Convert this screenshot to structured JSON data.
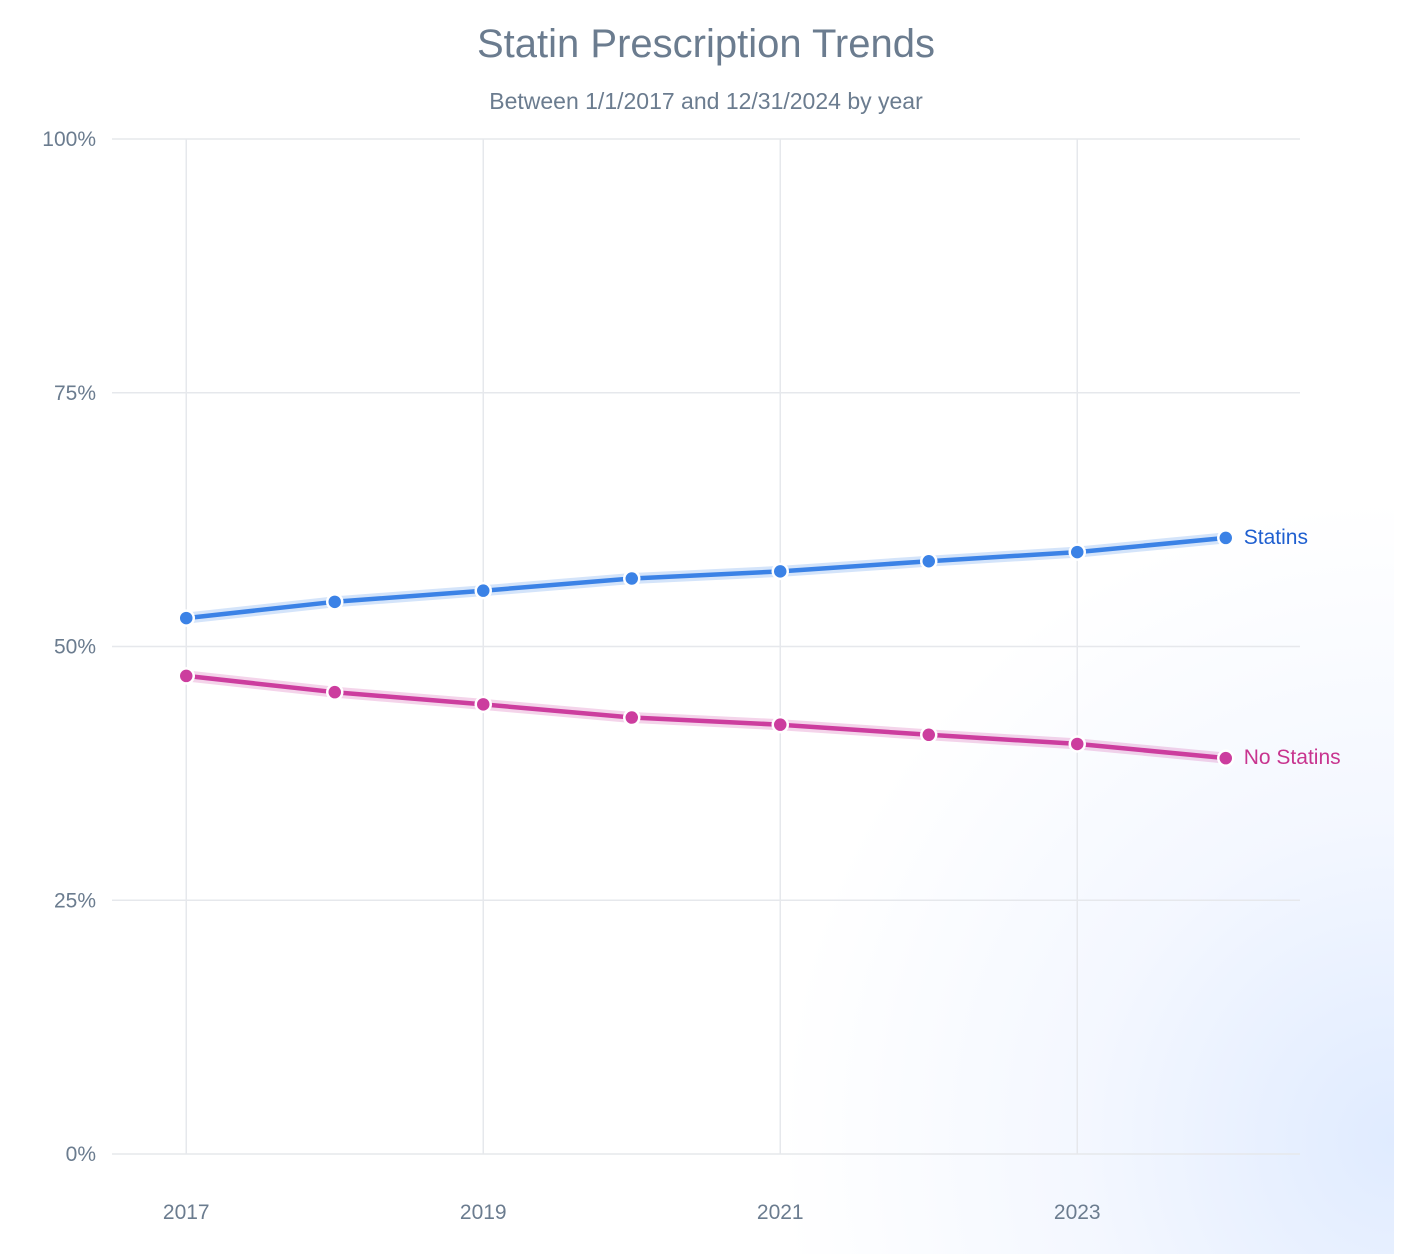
{
  "chart_data": {
    "type": "line",
    "title": "Statin Prescription Trends",
    "subtitle": "Between 1/1/2017 and 12/31/2024 by year",
    "x": [
      2017,
      2018,
      2019,
      2020,
      2021,
      2022,
      2023,
      2024
    ],
    "x_tick_labels": [
      "2017",
      "2019",
      "2021",
      "2023"
    ],
    "x_tick_values": [
      2017,
      2019,
      2021,
      2023
    ],
    "xlim": [
      2016.5,
      2024.5
    ],
    "y_tick_labels": [
      "0%",
      "25%",
      "50%",
      "75%",
      "100%"
    ],
    "y_tick_values": [
      0,
      25,
      50,
      75,
      100
    ],
    "ylim": [
      0,
      100
    ],
    "grid": true,
    "legend": "inline-right",
    "series": [
      {
        "name": "Statins",
        "color": "#3b82e6",
        "label_color": "#1f5fd0",
        "values": [
          52.8,
          54.4,
          55.5,
          56.7,
          57.4,
          58.4,
          59.3,
          60.7
        ]
      },
      {
        "name": "No Statins",
        "color": "#cc3d9e",
        "label_color": "#c8358f",
        "values": [
          47.1,
          45.5,
          44.3,
          43.0,
          42.3,
          41.3,
          40.4,
          39.0
        ]
      }
    ]
  }
}
